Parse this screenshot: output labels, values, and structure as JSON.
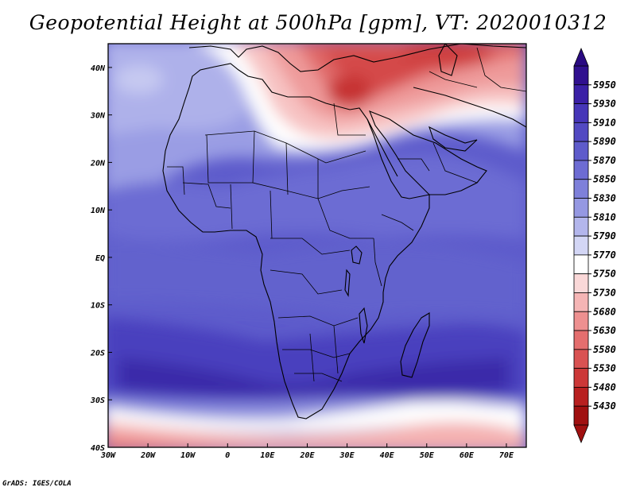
{
  "title": "Geopotential Height at 500hPa [gpm], VT: 2020010312",
  "credit": "GrADS: IGES/COLA",
  "map": {
    "lon_range": [
      -30,
      75
    ],
    "lat_range": [
      -40,
      45
    ],
    "x_ticks": [
      "30W",
      "20W",
      "10W",
      "0",
      "10E",
      "20E",
      "30E",
      "40E",
      "50E",
      "60E",
      "70E"
    ],
    "x_tick_values": [
      -30,
      -20,
      -10,
      0,
      10,
      20,
      30,
      40,
      50,
      60,
      70
    ],
    "y_ticks": [
      "40N",
      "30N",
      "20N",
      "10N",
      "EQ",
      "10S",
      "20S",
      "30S",
      "40S"
    ],
    "y_tick_values": [
      40,
      30,
      20,
      10,
      0,
      -10,
      -20,
      -30,
      -40
    ]
  },
  "colorbar": {
    "labels": [
      "5950",
      "5930",
      "5910",
      "5890",
      "5870",
      "5850",
      "5830",
      "5810",
      "5790",
      "5770",
      "5750",
      "5730",
      "5680",
      "5630",
      "5580",
      "5530",
      "5480",
      "5430"
    ],
    "colors": [
      "#30108f",
      "#3a20a6",
      "#4636b8",
      "#5249c2",
      "#5e5bcb",
      "#6d6cd3",
      "#7e80da",
      "#9598e2",
      "#b3b6ec",
      "#d3d6f5",
      "#ffffff",
      "#fad8d8",
      "#f5b5b5",
      "#ee9090",
      "#e46e6e",
      "#d95252",
      "#cc3838",
      "#b82020",
      "#a01010"
    ]
  }
}
